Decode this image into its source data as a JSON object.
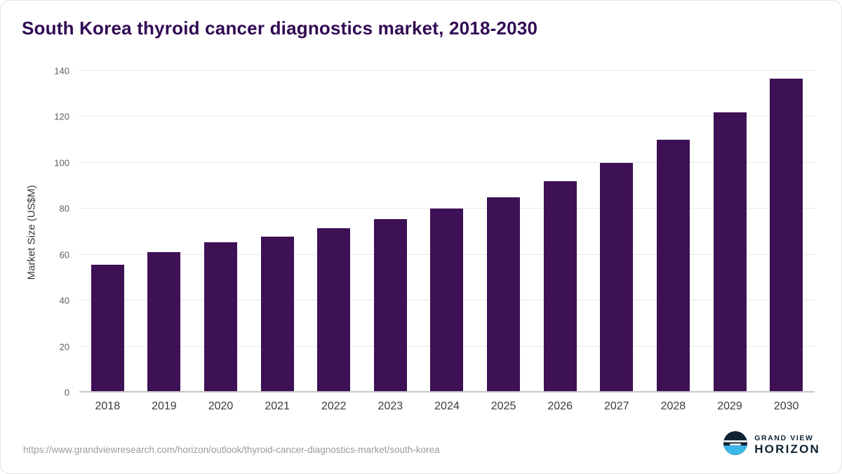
{
  "chart_data": {
    "type": "bar",
    "title": "South Korea thyroid cancer diagnostics market, 2018-2030",
    "xlabel": "",
    "ylabel": "Market Size (US$M)",
    "categories": [
      "2018",
      "2019",
      "2020",
      "2021",
      "2022",
      "2023",
      "2024",
      "2025",
      "2026",
      "2027",
      "2028",
      "2029",
      "2030"
    ],
    "values": [
      55.5,
      61,
      65.5,
      68,
      71.5,
      75.5,
      80,
      85,
      92,
      100,
      110,
      122,
      136.5
    ],
    "ylim": [
      0,
      140
    ],
    "yticks": [
      0,
      20,
      40,
      60,
      80,
      100,
      120,
      140
    ],
    "grid": "horizontal",
    "legend": "none",
    "bar_color": "#3e1055"
  },
  "footer": {
    "source_url": "https://www.grandviewresearch.com/horizon/outlook/thyroid-cancer-diagnostics-market/south-korea",
    "logo_top": "GRAND VIEW",
    "logo_bottom": "HORIZON"
  },
  "colors": {
    "title": "#320a54",
    "gridline": "#e7e7e7",
    "axis_line": "#c6c6c6",
    "tick_label": "#5f5f5f",
    "logo_navy": "#0e2433",
    "logo_cyan": "#3ab7e8"
  }
}
